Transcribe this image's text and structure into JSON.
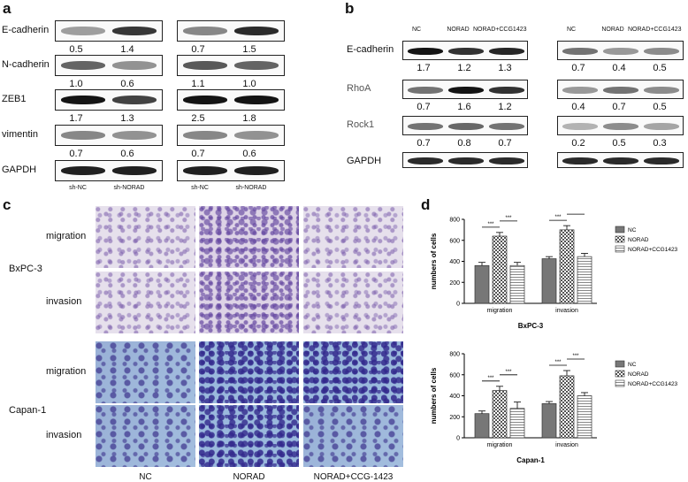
{
  "panel_a": {
    "letter": "a",
    "proteins": [
      "E-cadherin",
      "N-cadherin",
      "ZEB1",
      "vimentin",
      "GAPDH"
    ],
    "left_values": [
      [
        "0.5",
        "1.4"
      ],
      [
        "1.0",
        "0.6"
      ],
      [
        "1.7",
        "1.3"
      ],
      [
        "0.7",
        "0.6"
      ]
    ],
    "right_values": [
      [
        "0.7",
        "1.5"
      ],
      [
        "1.1",
        "1.0"
      ],
      [
        "2.5",
        "1.8"
      ],
      [
        "0.7",
        "0.6"
      ]
    ],
    "lanes": [
      "sh-NC",
      "sh-NORAD"
    ]
  },
  "panel_b": {
    "letter": "b",
    "lanes": [
      "NC",
      "NORAD",
      "NORAD+CCG1423"
    ],
    "proteins": [
      "E-cadherin",
      "RhoA",
      "Rock1",
      "GAPDH"
    ],
    "left_values": [
      [
        "1.7",
        "1.2",
        "1.3"
      ],
      [
        "0.7",
        "1.6",
        "1.2"
      ],
      [
        "0.7",
        "0.8",
        "0.7"
      ]
    ],
    "right_values": [
      [
        "0.7",
        "0.4",
        "0.5"
      ],
      [
        "0.4",
        "0.7",
        "0.5"
      ],
      [
        "0.2",
        "0.5",
        "0.3"
      ]
    ]
  },
  "panel_c": {
    "letter": "c",
    "cell_lines": [
      "BxPC-3",
      "Capan-1"
    ],
    "rows": [
      "migration",
      "invasion",
      "migration",
      "invasion"
    ],
    "columns": [
      "NC",
      "NORAD",
      "NORAD+CCG-1423"
    ]
  },
  "panel_d": {
    "letter": "d",
    "significance": "***"
  },
  "colors": {
    "nc": "#777777",
    "norad": "#ffffff",
    "ccg": "#f2f2f2"
  },
  "chart_data": [
    {
      "type": "bar",
      "title": "BxPC-3",
      "ylabel": "numbers of cells",
      "categories": [
        "migration",
        "invasion"
      ],
      "series": [
        {
          "name": "NC",
          "values": [
            360,
            425
          ],
          "errors": [
            30,
            20
          ]
        },
        {
          "name": "NORAD",
          "values": [
            640,
            700
          ],
          "errors": [
            35,
            40
          ]
        },
        {
          "name": "NORAD+CCG1423",
          "values": [
            360,
            445
          ],
          "errors": [
            30,
            30
          ]
        }
      ],
      "ylim": [
        0,
        800
      ],
      "yticks": [
        0,
        200,
        400,
        600,
        800
      ],
      "legend": "right"
    },
    {
      "type": "bar",
      "title": "Capan-1",
      "ylabel": "numbers of cells",
      "categories": [
        "migration",
        "invasion"
      ],
      "series": [
        {
          "name": "NC",
          "values": [
            230,
            325
          ],
          "errors": [
            25,
            20
          ]
        },
        {
          "name": "NORAD",
          "values": [
            450,
            590
          ],
          "errors": [
            40,
            50
          ]
        },
        {
          "name": "NORAD+CCG1423",
          "values": [
            280,
            400
          ],
          "errors": [
            60,
            30
          ]
        }
      ],
      "ylim": [
        0,
        800
      ],
      "yticks": [
        0,
        200,
        400,
        600,
        800
      ],
      "legend": "right"
    }
  ]
}
